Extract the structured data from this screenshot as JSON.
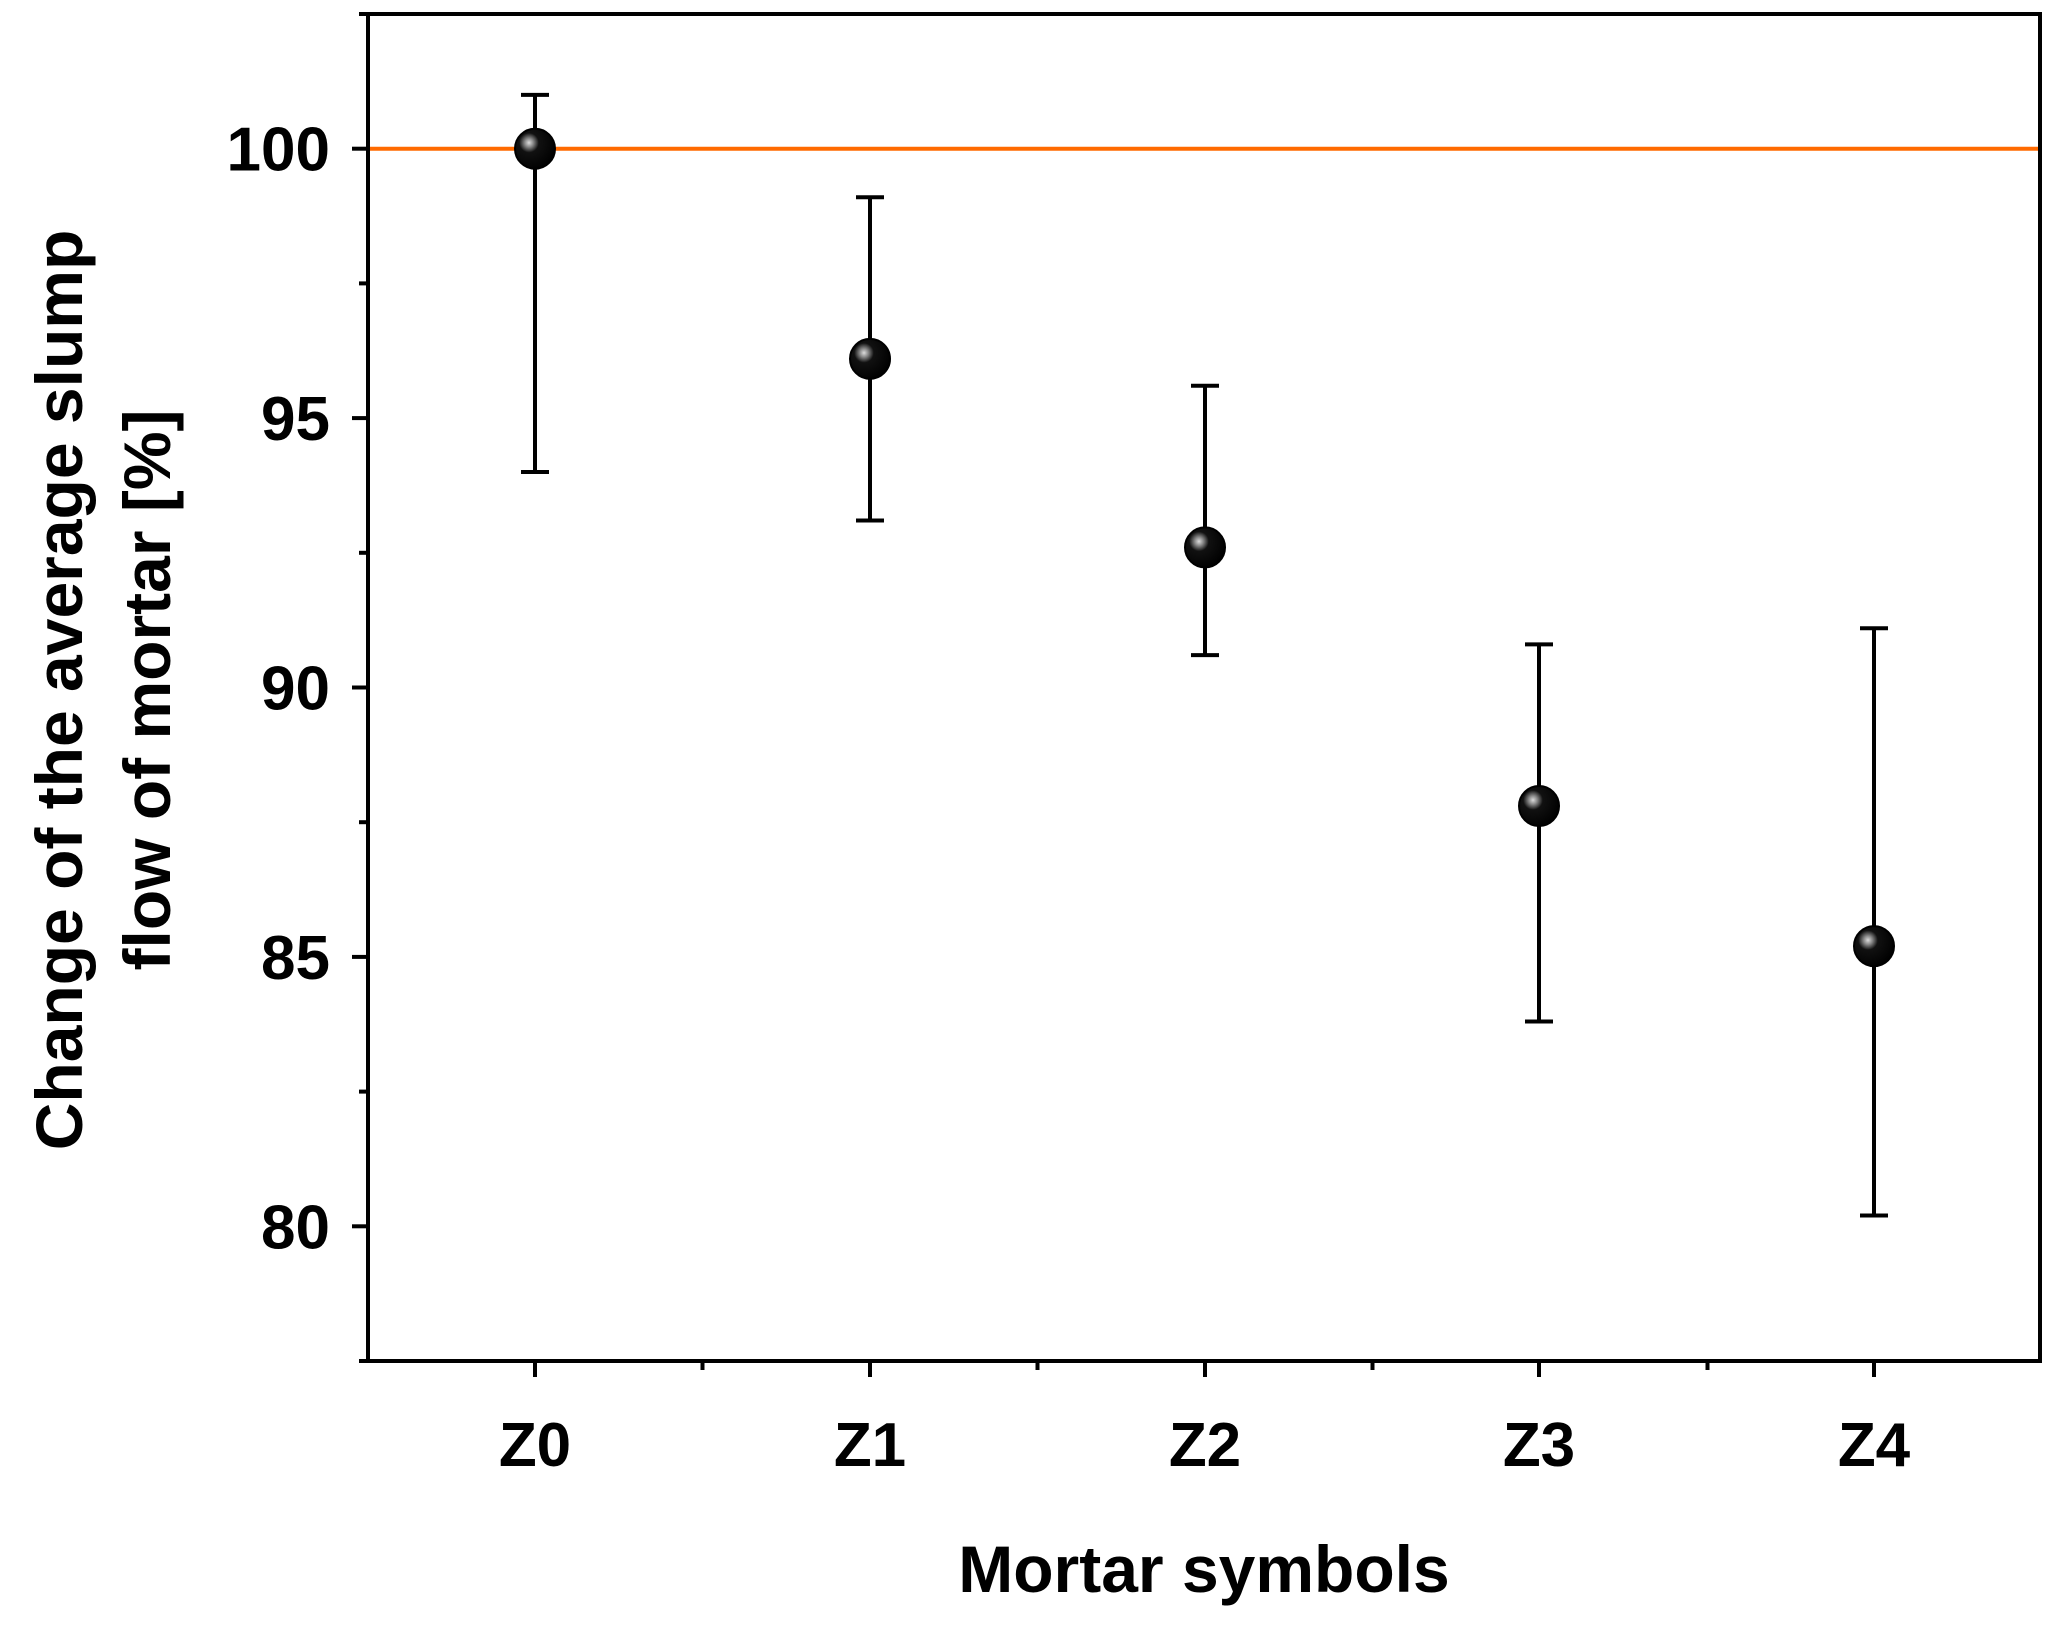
{
  "chart_data": {
    "type": "scatter",
    "title": "",
    "xlabel": "Mortar symbols",
    "ylabel_lines": [
      "Change of the average slump",
      "flow of mortar [%]"
    ],
    "categories": [
      "Z0",
      "Z1",
      "Z2",
      "Z3",
      "Z4"
    ],
    "values": [
      100.0,
      96.1,
      92.6,
      87.8,
      85.2
    ],
    "error_upper": [
      101.0,
      99.1,
      95.6,
      90.8,
      91.1
    ],
    "error_lower": [
      94.0,
      93.1,
      90.6,
      83.8,
      80.2
    ],
    "ylim": [
      77.5,
      102.5
    ],
    "yticks": [
      80,
      85,
      90,
      95,
      100
    ],
    "ytick_labels": [
      "80",
      "85",
      "90",
      "95",
      "100"
    ],
    "reference_line": {
      "y": 100,
      "color": "#ff6a00"
    },
    "marker_color": "#000000",
    "grid": false,
    "legend": "none"
  }
}
